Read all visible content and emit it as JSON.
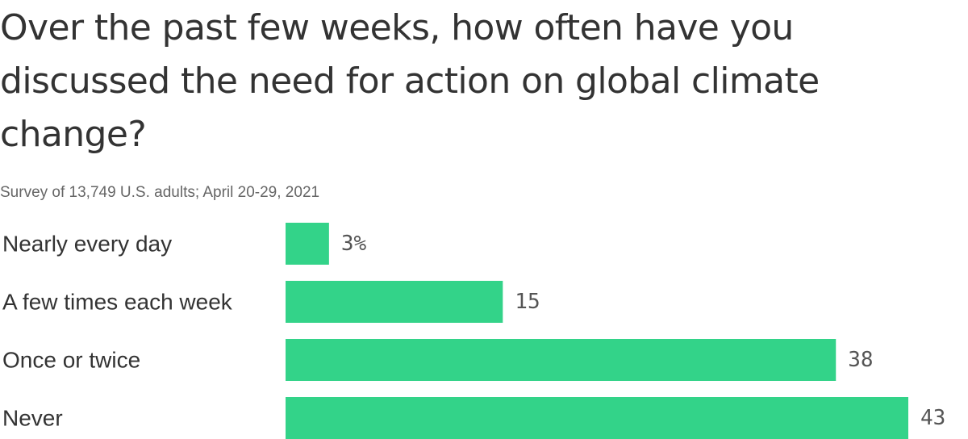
{
  "chart_data": {
    "type": "bar",
    "orientation": "horizontal",
    "title": "Over the past few weeks, how often have you discussed the need for action on global climate change?",
    "subtitle": "Survey of 13,749 U.S. adults; April 20-29, 2021",
    "categories": [
      "Nearly every day",
      "A few times each week",
      "Once or twice",
      "Never"
    ],
    "values": [
      3,
      15,
      38,
      43
    ],
    "value_labels": [
      "3%",
      "15",
      "38",
      "43"
    ],
    "unit": "%",
    "xlim": [
      0,
      43
    ],
    "grid": false,
    "bar_color": "#33d389"
  }
}
